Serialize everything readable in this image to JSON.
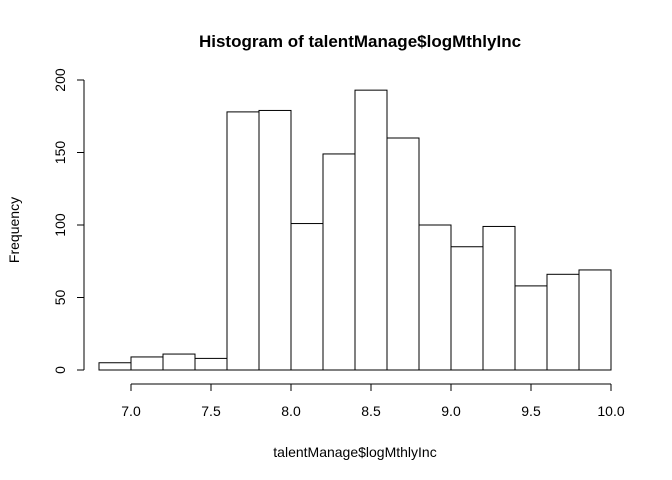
{
  "chart_data": {
    "type": "bar",
    "title": "Histogram of talentManage$logMthlyInc",
    "xlabel": "talentManage$logMthlyInc",
    "ylabel": "Frequency",
    "bins": [
      {
        "x0": 6.8,
        "x1": 7.0,
        "count": 5
      },
      {
        "x0": 7.0,
        "x1": 7.2,
        "count": 9
      },
      {
        "x0": 7.2,
        "x1": 7.4,
        "count": 11
      },
      {
        "x0": 7.4,
        "x1": 7.6,
        "count": 8
      },
      {
        "x0": 7.6,
        "x1": 7.8,
        "count": 178
      },
      {
        "x0": 7.8,
        "x1": 8.0,
        "count": 179
      },
      {
        "x0": 8.0,
        "x1": 8.2,
        "count": 101
      },
      {
        "x0": 8.2,
        "x1": 8.4,
        "count": 149
      },
      {
        "x0": 8.4,
        "x1": 8.6,
        "count": 193
      },
      {
        "x0": 8.6,
        "x1": 8.8,
        "count": 160
      },
      {
        "x0": 8.8,
        "x1": 9.0,
        "count": 100
      },
      {
        "x0": 9.0,
        "x1": 9.2,
        "count": 85
      },
      {
        "x0": 9.2,
        "x1": 9.4,
        "count": 99
      },
      {
        "x0": 9.4,
        "x1": 9.6,
        "count": 58
      },
      {
        "x0": 9.6,
        "x1": 9.8,
        "count": 66
      },
      {
        "x0": 9.8,
        "x1": 10.0,
        "count": 69
      }
    ],
    "xlim": [
      6.8,
      10.0
    ],
    "ylim": [
      0,
      200
    ],
    "xticks": [
      7.0,
      7.5,
      8.0,
      8.5,
      9.0,
      9.5,
      10.0
    ],
    "xtick_labels": [
      "7.0",
      "7.5",
      "8.0",
      "8.5",
      "9.0",
      "9.5",
      "10.0"
    ],
    "yticks": [
      0,
      50,
      100,
      150,
      200
    ],
    "ytick_labels": [
      "0",
      "50",
      "100",
      "150",
      "200"
    ],
    "grid": false,
    "legend": "none"
  }
}
